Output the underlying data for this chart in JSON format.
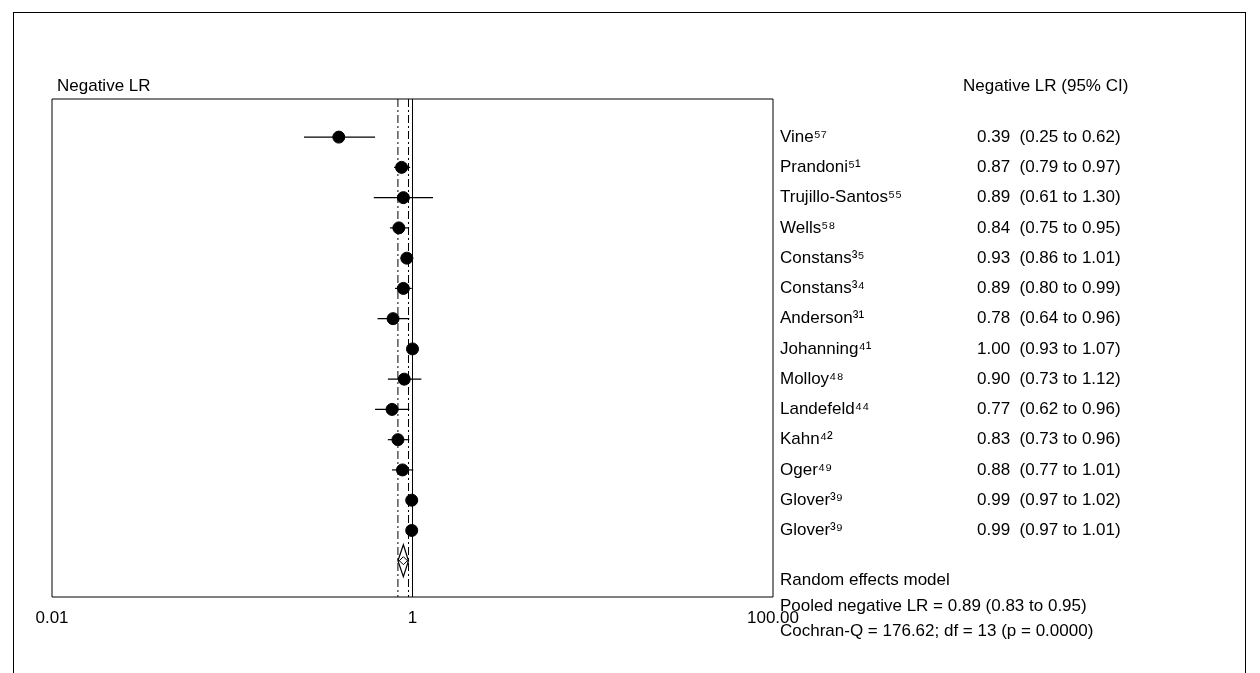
{
  "chart_data": {
    "type": "scatter",
    "xlabel": "Negative LR",
    "log": "x",
    "xlim": [
      0.01,
      100
    ],
    "orientation": "horizontal",
    "xticks": [
      {
        "value": 0.01,
        "label": "0.01"
      },
      {
        "value": 1,
        "label": "1"
      },
      {
        "value": 100,
        "label": "100.00"
      }
    ],
    "grid": false,
    "legend": false,
    "tick_labels": "xy",
    "categories": [
      "Vine⁵⁷",
      "Prandoni⁵¹",
      "Trujillo-Santos⁵⁵",
      "Wells⁵⁸",
      "Constans³⁵",
      "Constans³⁴",
      "Anderson³¹",
      "Johanning⁴¹",
      "Molloy⁴⁸",
      "Landefeld⁴⁴",
      "Kahn⁴²",
      "Oger⁴⁹",
      "Glover³⁹",
      "Glover³⁹",
      null
    ],
    "series": [
      {
        "marker": "circle",
        "color": "#000000",
        "values": [
          0.39,
          0.87,
          0.89,
          0.84,
          0.93,
          0.89,
          0.78,
          1.0,
          0.9,
          0.77,
          0.83,
          0.88,
          0.99,
          0.99,
          null
        ],
        "errors": [
          [
            0.25,
            0.62
          ],
          [
            0.79,
            0.97
          ],
          [
            0.61,
            1.3
          ],
          [
            0.75,
            0.95
          ],
          [
            0.86,
            1.01
          ],
          [
            0.8,
            0.99
          ],
          [
            0.64,
            0.96
          ],
          [
            0.93,
            1.07
          ],
          [
            0.73,
            1.12
          ],
          [
            0.62,
            0.96
          ],
          [
            0.73,
            0.96
          ],
          [
            0.77,
            1.01
          ],
          [
            0.97,
            1.02
          ],
          [
            0.97,
            1.01
          ],
          null
        ],
        "value_labels": [
          "0.39  (0.25 to 0.62)",
          "0.87  (0.79 to 0.97)",
          "0.89  (0.61 to 1.30)",
          "0.84  (0.75 to 0.95)",
          "0.93  (0.86 to 1.01)",
          "0.89  (0.80 to 0.99)",
          "0.78  (0.64 to 0.96)",
          "1.00  (0.93 to 1.07)",
          "0.90  (0.73 to 1.12)",
          "0.77  (0.62 to 0.96)",
          "0.83  (0.73 to 0.96)",
          "0.88  (0.77 to 1.01)",
          "0.99  (0.97 to 1.02)",
          "0.99  (0.97 to 1.01)",
          null
        ]
      },
      {
        "marker": "diamond",
        "color": "#000000",
        "values": [
          null,
          null,
          null,
          null,
          null,
          null,
          null,
          null,
          null,
          null,
          null,
          null,
          null,
          null,
          0.89
        ],
        "errors": [
          null,
          null,
          null,
          null,
          null,
          null,
          null,
          null,
          null,
          null,
          null,
          null,
          null,
          null,
          [
            0.83,
            0.95
          ]
        ]
      }
    ],
    "ref_lines": [
      {
        "axis": "x",
        "value": 1,
        "line_style": "solid",
        "color": "#000000"
      },
      {
        "axis": "x",
        "value": 0.83,
        "line_style": "dashed",
        "color": "#000000"
      },
      {
        "axis": "x",
        "value": 0.95,
        "line_style": "dashed",
        "color": "#000000"
      }
    ],
    "annotations": [
      "Negative LR (95% CI)",
      "Random effects model",
      "Pooled negative LR = 0.89 (0.83 to 0.95)",
      "Cochran-Q = 176.62; df = 13 (p = 0.0000)"
    ]
  }
}
